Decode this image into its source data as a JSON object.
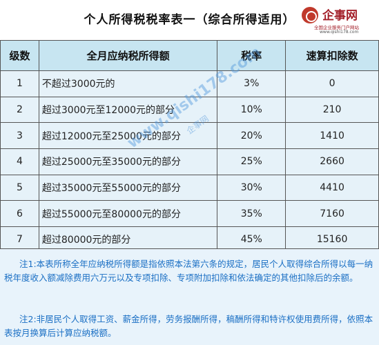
{
  "title": "个人所得税税率表一（综合所得适用）",
  "logo": {
    "name": "企事网",
    "slogan": "全国企业服务门户网站",
    "url": "www.qishi178.com"
  },
  "table": {
    "headers": [
      "级数",
      "全月应纳税所得额",
      "税率",
      "速算扣除数"
    ],
    "rows": [
      {
        "level": "1",
        "range": "不超过3000元的",
        "rate": "3%",
        "deduction": "0"
      },
      {
        "level": "2",
        "range": "超过3000元至12000元的部分",
        "rate": "10%",
        "deduction": "210"
      },
      {
        "level": "3",
        "range": "超过12000元至25000元的部分",
        "rate": "20%",
        "deduction": "1410"
      },
      {
        "level": "4",
        "range": "超过25000元至35000元的部分",
        "rate": "25%",
        "deduction": "2660"
      },
      {
        "level": "5",
        "range": "超过35000元至55000元的部分",
        "rate": "30%",
        "deduction": "4410"
      },
      {
        "level": "6",
        "range": "超过55000元至80000元的部分",
        "rate": "35%",
        "deduction": "7160"
      },
      {
        "level": "7",
        "range": "超过80000元的部分",
        "rate": "45%",
        "deduction": "15160"
      }
    ]
  },
  "watermark": {
    "url": "www.qishi178.com",
    "brand": "企事网"
  },
  "notes": {
    "note1": "注1:本表所称全年应纳税所得额是指依照本法第六条的规定，居民个人取得综合所得以每一纳税年度收入额减除费用六万元以及专项扣除、专项附加扣除和依法确定的其他扣除后的余额。",
    "note2": "注2:非居民个人取得工资、薪金所得，劳务报酬所得，稿酬所得和特许权使用费所得，依照本表按月换算后计算应纳税额。"
  }
}
